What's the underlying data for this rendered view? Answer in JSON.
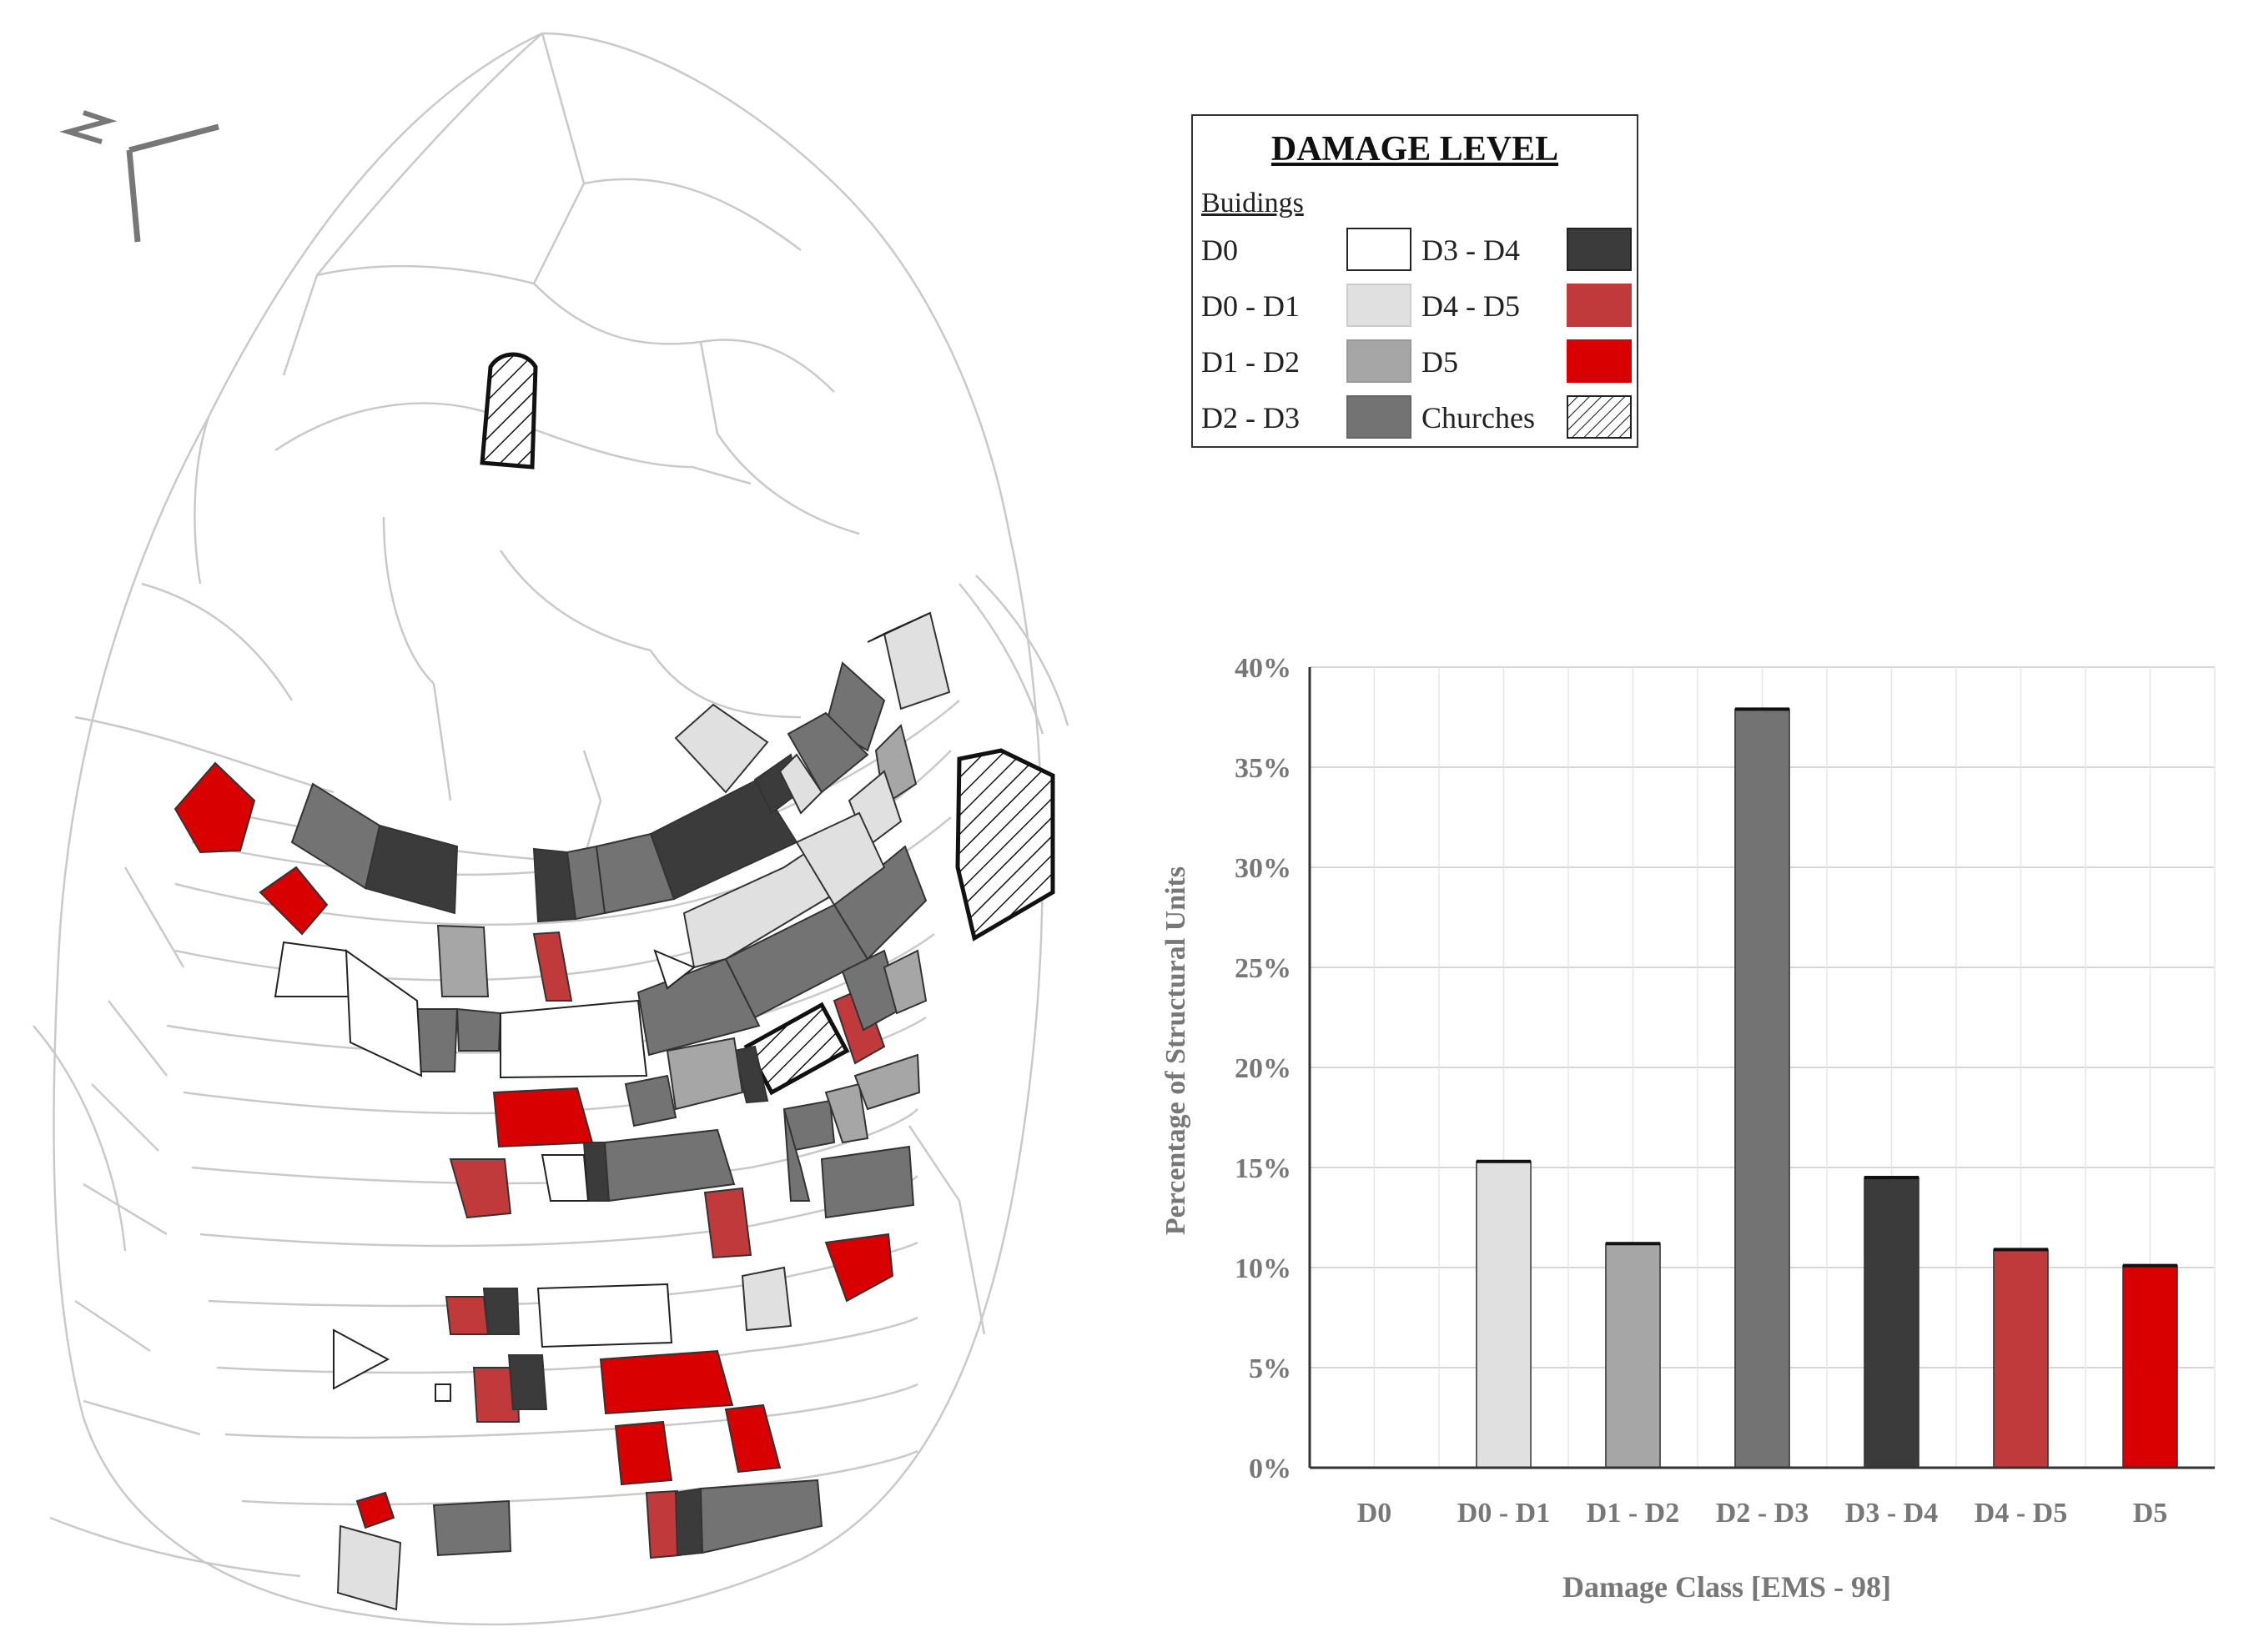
{
  "map": {
    "north_label": "N",
    "colors": {
      "D0": "#ffffff",
      "D0 - D1": "#e0e0e0",
      "D1 - D2": "#a6a6a6",
      "D2 - D3": "#737373",
      "D3 - D4": "#3b3b3b",
      "D4 - D5": "#c0393b",
      "D5": "#d80000"
    }
  },
  "legend": {
    "title": "DAMAGE LEVEL",
    "subtitle": "Buidings",
    "items": [
      {
        "label": "D0",
        "color": "#ffffff"
      },
      {
        "label": "D0 - D1",
        "color": "#e0e0e0"
      },
      {
        "label": "D1 - D2",
        "color": "#a6a6a6"
      },
      {
        "label": "D2 - D3",
        "color": "#737373"
      },
      {
        "label": "D3 - D4",
        "color": "#3b3b3b"
      },
      {
        "label": "D4 - D5",
        "color": "#c0393b"
      },
      {
        "label": "D5",
        "color": "#d80000"
      },
      {
        "label": "Churches",
        "color": "hatch"
      }
    ]
  },
  "chart_data": {
    "type": "bar",
    "categories": [
      "D0",
      "D0 - D1",
      "D1 - D2",
      "D2 - D3",
      "D3 - D4",
      "D4 - D5",
      "D5"
    ],
    "values": [
      0,
      15.3,
      11.2,
      37.9,
      14.5,
      10.9,
      10.1
    ],
    "colors": [
      "#ffffff",
      "#e0e0e0",
      "#a6a6a6",
      "#737373",
      "#3b3b3b",
      "#c0393b",
      "#d80000"
    ],
    "ylim": [
      0,
      40
    ],
    "yticks": [
      "0%",
      "5%",
      "10%",
      "15%",
      "20%",
      "25%",
      "30%",
      "35%",
      "40%"
    ],
    "ylabel": "Percentage of Structural Units",
    "xlabel": "Damage Class [EMS - 98]",
    "grid": true
  }
}
